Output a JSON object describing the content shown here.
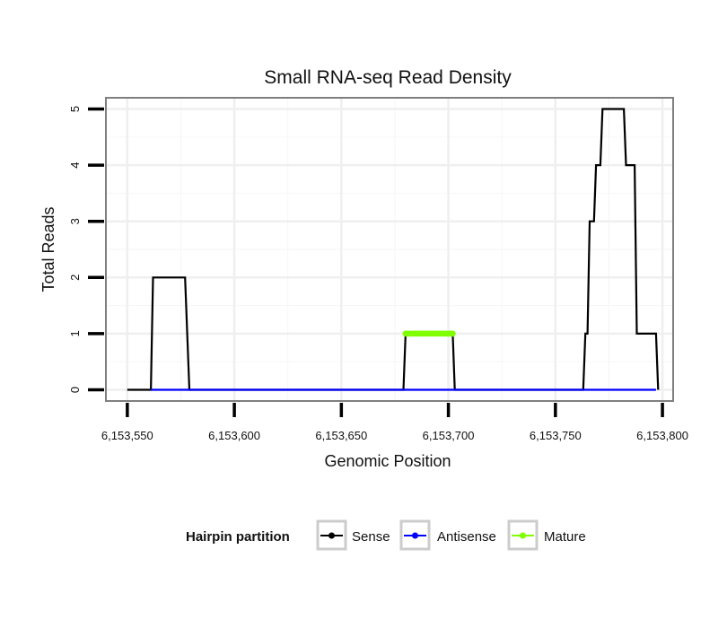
{
  "chart_data": {
    "type": "line",
    "title": "Small RNA-seq Read Density",
    "xlabel": "Genomic Position",
    "ylabel": "Total Reads",
    "xlim": [
      6153540,
      6153805
    ],
    "ylim": [
      -0.2,
      5.2
    ],
    "x_ticks": [
      6153550,
      6153600,
      6153650,
      6153700,
      6153750,
      6153800
    ],
    "x_tick_labels": [
      "6,153,550",
      "6,153,600",
      "6,153,650",
      "6,153,700",
      "6,153,750",
      "6,153,800"
    ],
    "y_ticks": [
      0,
      1,
      2,
      3,
      4,
      5
    ],
    "y_tick_labels": [
      "0",
      "1",
      "2",
      "3",
      "4",
      "5"
    ],
    "grid": true,
    "legend": {
      "title": "Hairpin partition",
      "position": "bottom",
      "entries": [
        "Sense",
        "Antisense",
        "Mature"
      ]
    },
    "series": [
      {
        "name": "Sense",
        "color": "#000000",
        "x": [
          6153550,
          6153561,
          6153562,
          6153577,
          6153579,
          6153679,
          6153680,
          6153702,
          6153703,
          6153763,
          6153764,
          6153765,
          6153766,
          6153768,
          6153769,
          6153771,
          6153772,
          6153775,
          6153776,
          6153782,
          6153783,
          6153787,
          6153788,
          6153792,
          6153793,
          6153797,
          6153798
        ],
        "y": [
          0,
          0,
          2,
          2,
          0,
          0,
          1,
          1,
          0,
          0,
          1,
          1,
          3,
          3,
          4,
          4,
          5,
          5,
          5,
          5,
          4,
          4,
          1,
          1,
          1,
          1,
          0
        ]
      },
      {
        "name": "Antisense",
        "color": "#0000ff",
        "x": [
          6153561,
          6153579,
          6153680,
          6153703,
          6153763,
          6153797
        ],
        "y": [
          0,
          0,
          0,
          0,
          0,
          0
        ]
      },
      {
        "name": "Mature",
        "color": "#7fff00",
        "x": [
          6153680,
          6153681,
          6153682,
          6153683,
          6153684,
          6153685,
          6153686,
          6153687,
          6153688,
          6153689,
          6153690,
          6153691,
          6153692,
          6153693,
          6153694,
          6153695,
          6153696,
          6153697,
          6153698,
          6153699,
          6153700,
          6153701,
          6153702
        ],
        "y": [
          1,
          1,
          1,
          1,
          1,
          1,
          1,
          1,
          1,
          1,
          1,
          1,
          1,
          1,
          1,
          1,
          1,
          1,
          1,
          1,
          1,
          1,
          1
        ]
      }
    ]
  }
}
